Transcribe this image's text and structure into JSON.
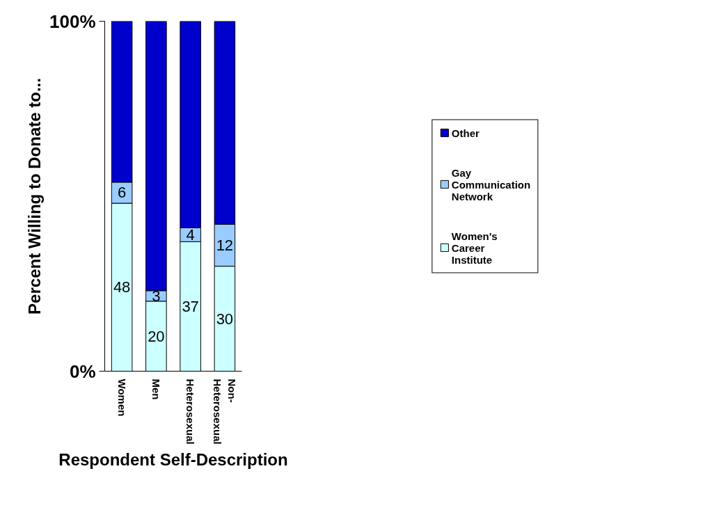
{
  "chart_data": {
    "type": "bar",
    "stacked": true,
    "xlabel": "Respondent Self-Description",
    "ylabel": "Percent Willing to Donate to...",
    "categories": [
      "Women",
      "Men",
      "Heterosexual",
      "Non-Heterosexual"
    ],
    "series": [
      {
        "name": "Women's Career Institute",
        "color": "#ccffff",
        "values": [
          48,
          20,
          37,
          30
        ],
        "value_labels": [
          "48",
          "20",
          "37",
          "30"
        ]
      },
      {
        "name": "Gay Communication Network",
        "color": "#99ccff",
        "values": [
          6,
          3,
          4,
          12
        ],
        "value_labels": [
          "6",
          "3",
          "4",
          "12"
        ]
      },
      {
        "name": "Other",
        "color": "#0000cc",
        "values": [
          46,
          77,
          59,
          58
        ]
      }
    ],
    "ylim": [
      0,
      100
    ],
    "yticks": [
      {
        "value": 0,
        "label": "0%"
      },
      {
        "value": 100,
        "label": "100%"
      }
    ],
    "legend": "right"
  }
}
